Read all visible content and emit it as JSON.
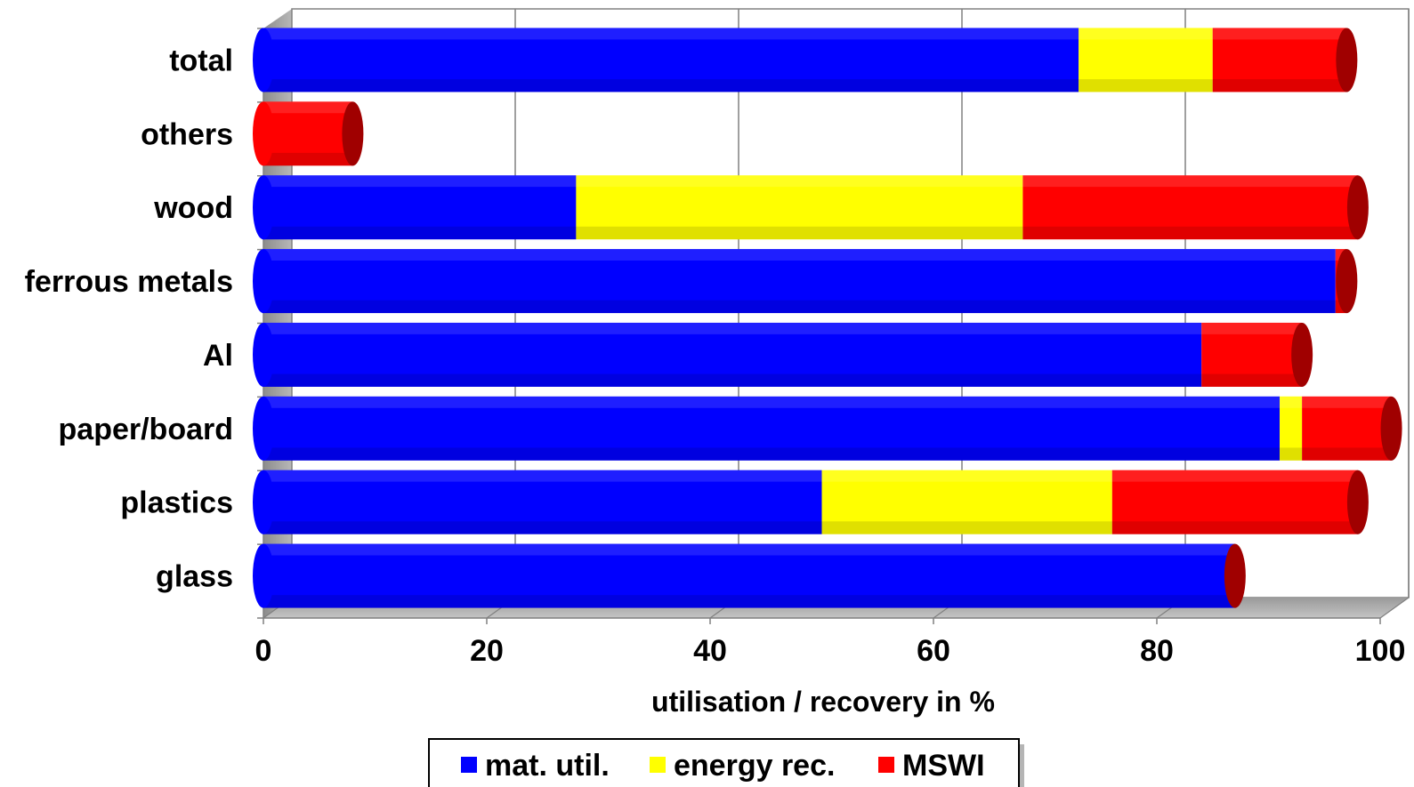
{
  "chart_data": {
    "type": "bar",
    "orientation": "horizontal",
    "stacked": true,
    "style": "3d-cylinder",
    "categories": [
      "total",
      "others",
      "wood",
      "ferrous metals",
      "Al",
      "paper/board",
      "plastics",
      "glass"
    ],
    "series": [
      {
        "name": "mat. util.",
        "color": "#0000ff",
        "values": [
          73,
          0,
          28,
          96,
          84,
          91,
          50,
          87
        ]
      },
      {
        "name": "energy rec.",
        "color": "#ffff00",
        "values": [
          12,
          0,
          40,
          0,
          0,
          2,
          26,
          0
        ]
      },
      {
        "name": "MSWI",
        "color": "#ff0000",
        "values": [
          12,
          8,
          30,
          1,
          9,
          8,
          22,
          0
        ]
      }
    ],
    "xlabel": "utilisation / recovery in %",
    "xlim": [
      0,
      100
    ],
    "xticks": [
      "0",
      "20",
      "40",
      "60",
      "80",
      "100"
    ],
    "grid": true,
    "legend": "bottom-center"
  }
}
